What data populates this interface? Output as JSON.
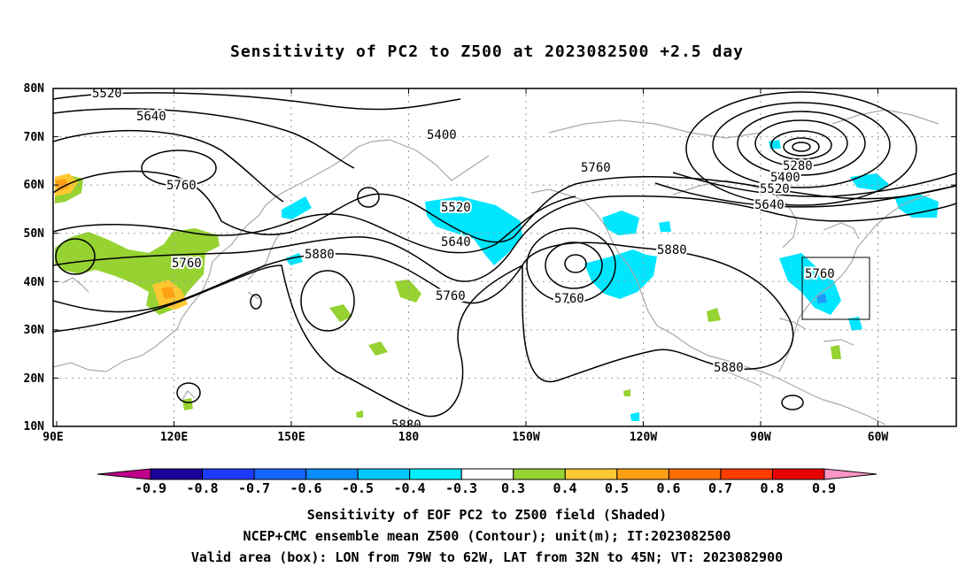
{
  "title": "Sensitivity of PC2 to Z500 at 2023082500 +2.5 day",
  "map": {
    "lat_labels": [
      "80N",
      "70N",
      "60N",
      "50N",
      "40N",
      "30N",
      "20N",
      "10N"
    ],
    "lon_labels": [
      "90E",
      "120E",
      "150E",
      "180",
      "150W",
      "120W",
      "90W",
      "60W"
    ],
    "contour_labels": [
      "5520",
      "5640",
      "5760",
      "5400",
      "5760",
      "5520",
      "5640",
      "5280",
      "5400",
      "5520",
      "5640",
      "5760",
      "5880",
      "5760",
      "5880",
      "5760",
      "5760",
      "5880",
      "5880"
    ],
    "valid_box": {
      "lon_w": "79W",
      "lon_e": "62W",
      "lat_s": "32N",
      "lat_n": "45N"
    }
  },
  "colorbar": {
    "labels": [
      "-0.9",
      "-0.8",
      "-0.7",
      "-0.6",
      "-0.5",
      "-0.4",
      "-0.3",
      "0.3",
      "0.4",
      "0.5",
      "0.6",
      "0.7",
      "0.8",
      "0.9"
    ],
    "colors": [
      "#1a0099",
      "#1e3cff",
      "#1464ff",
      "#0a8cff",
      "#00c8ff",
      "#00f0ff",
      "#ffffff",
      "#96d232",
      "#ffc832",
      "#ffa014",
      "#ff6e00",
      "#ff3c00",
      "#e60000"
    ],
    "low_end": "#c0008c",
    "high_end": "#ff96c8"
  },
  "shade_colors": {
    "cyan": "#00e6ff",
    "green": "#96d232",
    "yellow": "#ffc832",
    "orange": "#ffa014"
  },
  "captions": [
    "Sensitivity of EOF PC2 to Z500 field (Shaded)",
    "NCEP+CMC ensemble mean Z500 (Contour); unit(m); IT:2023082500",
    "Valid area (box): LON from 79W to 62W, LAT from 32N to 45N; VT: 2023082900"
  ]
}
